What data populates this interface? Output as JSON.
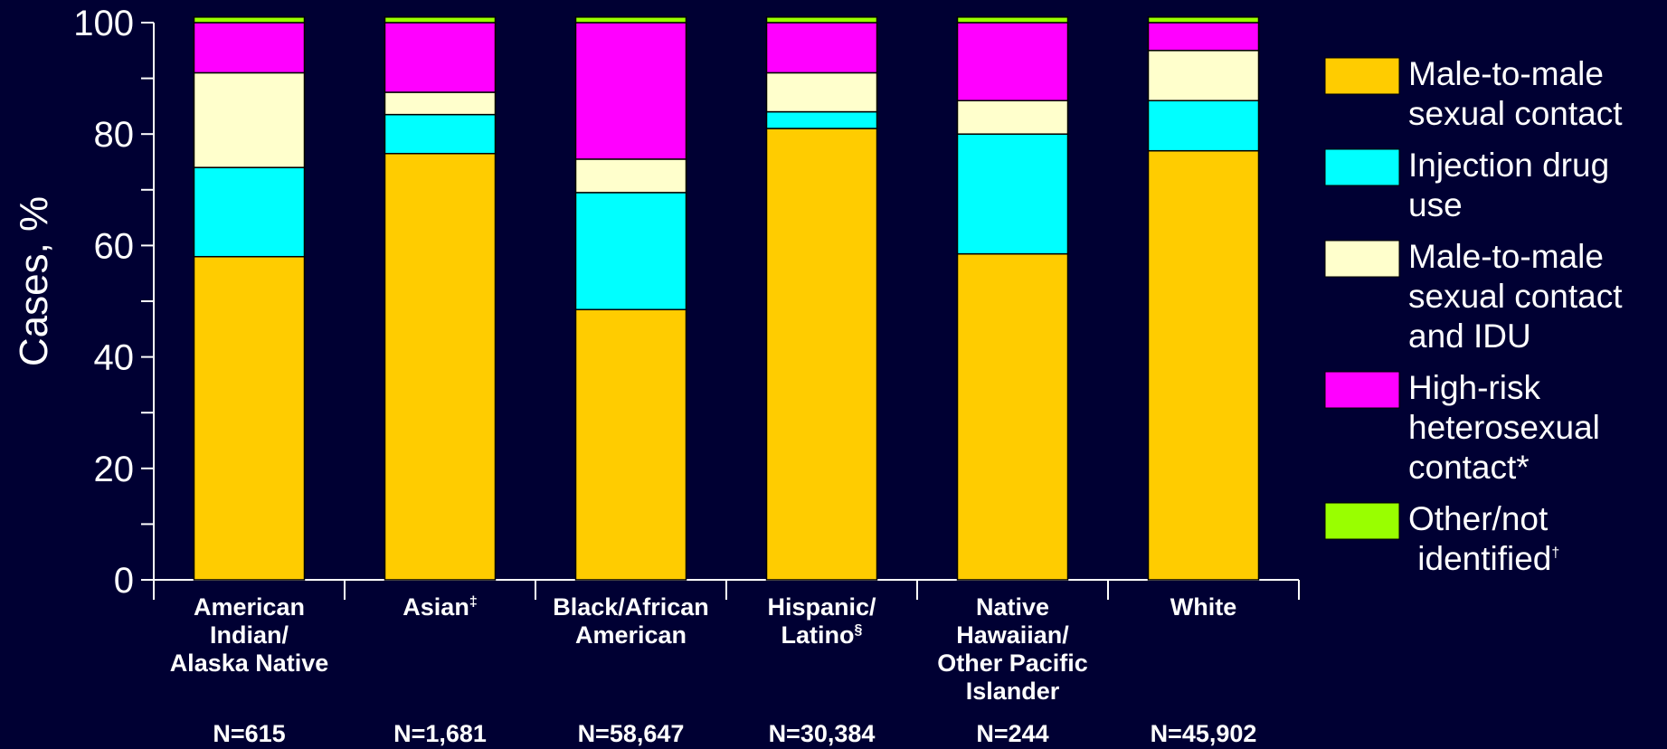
{
  "chart_data": {
    "type": "bar",
    "stacked": true,
    "ylabel": "Cases, %",
    "ylim": [
      0,
      100
    ],
    "yticks": [
      "0",
      "20",
      "40",
      "60",
      "80",
      "100"
    ],
    "categories": [
      {
        "lines": [
          "American",
          "Indian/",
          "Alaska Native"
        ],
        "sup": "",
        "n": "N=615"
      },
      {
        "lines": [
          "Asian"
        ],
        "sup": "‡",
        "n": "N=1,681"
      },
      {
        "lines": [
          "Black/African",
          "American"
        ],
        "sup": "",
        "n": "N=58,647"
      },
      {
        "lines": [
          "Hispanic/",
          "Latino"
        ],
        "sup": "§",
        "n": "N=30,384"
      },
      {
        "lines": [
          "Native",
          "Hawaiian/",
          "Other Pacific",
          "Islander"
        ],
        "sup": "",
        "n": "N=244"
      },
      {
        "lines": [
          "White"
        ],
        "sup": "",
        "n": "N=45,902"
      }
    ],
    "series": [
      {
        "name": "Male-to-male sexual contact",
        "legend_lines": [
          "Male-to-male",
          "sexual contact"
        ],
        "color": "#FFCC00",
        "values": [
          58,
          76.5,
          48.5,
          81,
          58.5,
          77
        ]
      },
      {
        "name": "Injection drug use",
        "legend_lines": [
          "Injection drug",
          "use"
        ],
        "color": "#00FFFF",
        "values": [
          16,
          7,
          21,
          3,
          21.5,
          9
        ]
      },
      {
        "name": "Male-to-male sexual contact and IDU",
        "legend_lines": [
          "Male-to-male",
          "sexual contact",
          "and IDU"
        ],
        "color": "#FFFFCC",
        "values": [
          17,
          4,
          6,
          7,
          6,
          9
        ]
      },
      {
        "name": "High-risk heterosexual contact*",
        "legend_lines": [
          "High-risk",
          "heterosexual",
          "contact*"
        ],
        "color": "#FF00FF",
        "values": [
          9,
          12.5,
          24.5,
          9,
          14,
          5
        ]
      },
      {
        "name": "Other/not identified†",
        "legend_lines": [
          "Other/not",
          " identified†"
        ],
        "color": "#99FF00",
        "values": [
          1,
          1,
          1,
          1,
          1,
          1
        ]
      }
    ]
  }
}
